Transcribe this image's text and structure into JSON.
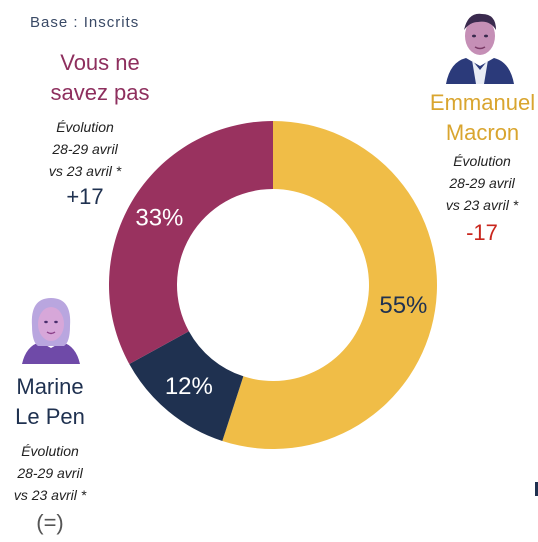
{
  "base_label": "Base : Inscrits",
  "candidates": {
    "nsp": {
      "name": "Vous ne\nsavez pas",
      "evolution_label": "Évolution\n28-29 avril\nvs 23 avril *",
      "evolution_value": "+17"
    },
    "macron": {
      "name": "Emmanuel\nMacron",
      "evolution_label": "Évolution\n28-29 avril\nvs 23 avril *",
      "evolution_value": "-17"
    },
    "lepen": {
      "name": "Marine\nLe Pen",
      "evolution_label": "Évolution\n28-29 avril\nvs 23 avril *",
      "evolution_value": "(=)"
    }
  },
  "chart_data": {
    "type": "pie",
    "donut": true,
    "categories": [
      "Emmanuel Macron",
      "Marine Le Pen",
      "Vous ne savez pas"
    ],
    "values": [
      55,
      12,
      33
    ],
    "labels": [
      "55%",
      "12%",
      "33%"
    ],
    "colors": [
      "#f0bd47",
      "#1f3150",
      "#99325f"
    ],
    "label_colors": [
      "#1f3150",
      "#ffffff",
      "#ffffff"
    ]
  }
}
